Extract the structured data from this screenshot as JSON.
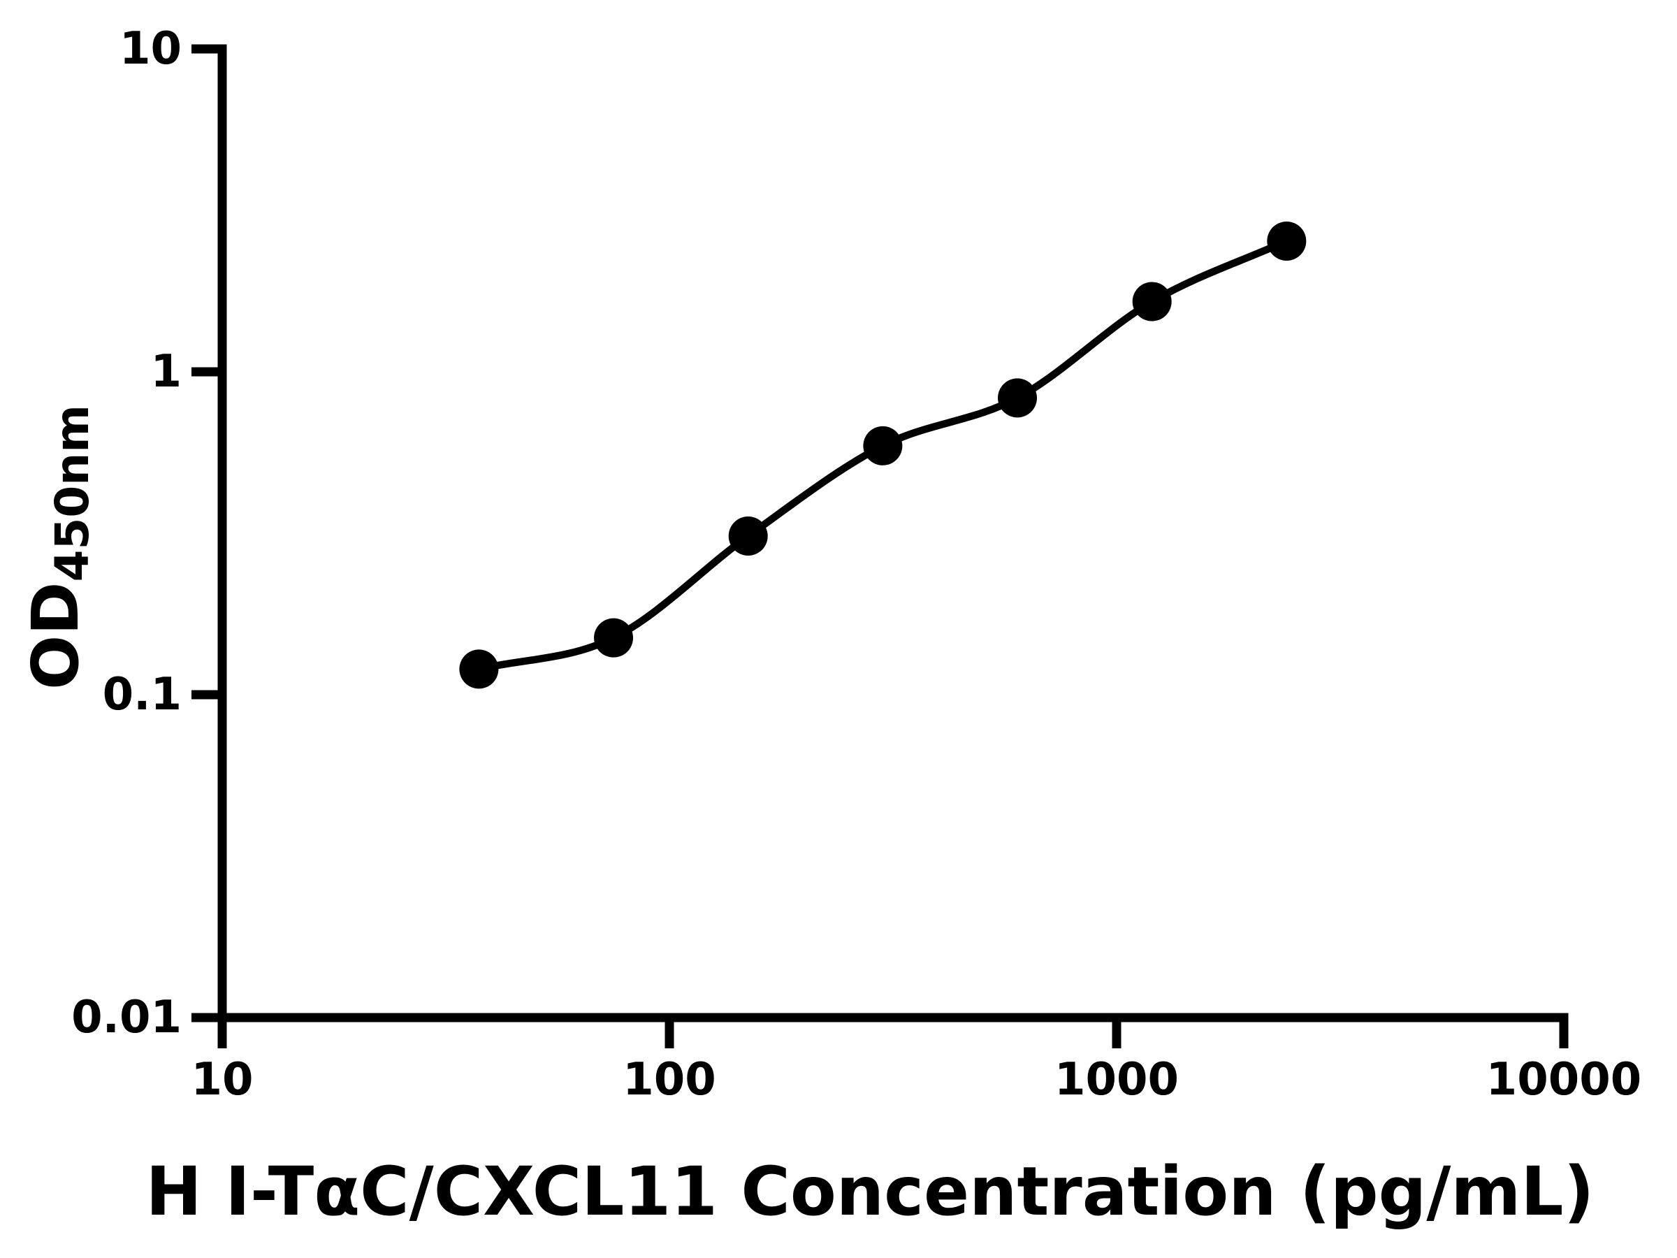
{
  "chart_data": {
    "type": "scatter",
    "title": "",
    "xlabel": "H I-TαC/CXCL11 Concentration (pg/mL)",
    "ylabel_main": "OD",
    "ylabel_sub": "450nm",
    "x_scale": "log10",
    "y_scale": "log10",
    "xlim": [
      10,
      10000
    ],
    "ylim": [
      0.01,
      10
    ],
    "grid": false,
    "x_ticks": [
      {
        "value": 10,
        "label": "10"
      },
      {
        "value": 100,
        "label": "100"
      },
      {
        "value": 1000,
        "label": "1000"
      },
      {
        "value": 10000,
        "label": "10000"
      }
    ],
    "y_ticks": [
      {
        "value": 10,
        "label": "10"
      },
      {
        "value": 1,
        "label": "1"
      },
      {
        "value": 0.1,
        "label": "0.1"
      },
      {
        "value": 0.01,
        "label": "0.01"
      }
    ],
    "series": [
      {
        "marker": "filled-circle",
        "color": "#000000",
        "curve": "smooth fitted line through points",
        "x": [
          37.5,
          75,
          150,
          300,
          600,
          1200,
          2400
        ],
        "y": [
          0.12,
          0.15,
          0.31,
          0.59,
          0.83,
          1.65,
          2.54
        ]
      }
    ],
    "colors": {
      "foreground": "#000000",
      "background": "#ffffff"
    }
  }
}
